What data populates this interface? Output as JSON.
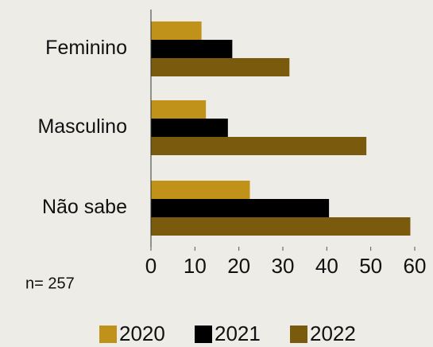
{
  "chart_data": {
    "type": "bar",
    "orientation": "horizontal",
    "categories": [
      "Feminino",
      "Masculino",
      "Não sabe"
    ],
    "series": [
      {
        "name": "2020",
        "color": "#c0921a",
        "values": [
          11.5,
          12.5,
          22.5
        ]
      },
      {
        "name": "2021",
        "color": "#000000",
        "values": [
          18.5,
          17.5,
          40.5
        ]
      },
      {
        "name": "2022",
        "color": "#7a5a0c",
        "values": [
          31.5,
          49,
          59
        ]
      }
    ],
    "xlim": [
      0,
      60
    ],
    "xticks": [
      0,
      10,
      20,
      30,
      40,
      50,
      60
    ],
    "annotation": "n= 257",
    "legend": "bottom"
  }
}
